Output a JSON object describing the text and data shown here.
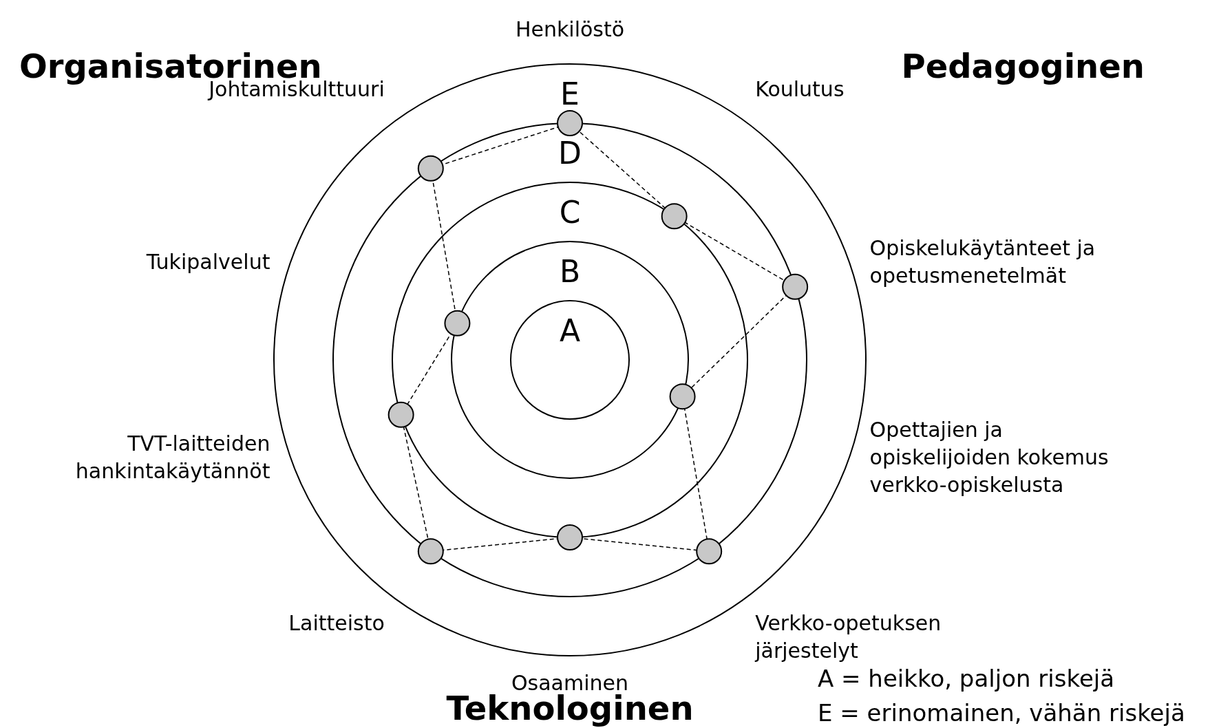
{
  "chart_data": {
    "type": "radar",
    "categories": [
      "Henkilöstö",
      "Koulutus",
      "Opiskelukäytänteet ja opetusmenetelmät",
      "Opettajien ja opiskelijoiden kokemus verkko-opiskelusta",
      "Verkko-opetuksen järjestelyt",
      "Osaaminen",
      "Laitteisto",
      "TVT-laitteiden hankintakäytännöt",
      "Tukipalvelut",
      "Johtamiskulttuuri"
    ],
    "series": [
      {
        "color": "#000000",
        "values": [
          4,
          3,
          4,
          2,
          4,
          3,
          4,
          3,
          2,
          4
        ]
      }
    ],
    "ylim": [
      0,
      5
    ],
    "yticks": [
      {
        "value": 1,
        "label": "A"
      },
      {
        "value": 2,
        "label": "B"
      },
      {
        "value": 3,
        "label": "C"
      },
      {
        "value": 4,
        "label": "D"
      },
      {
        "value": 5,
        "label": "E"
      }
    ],
    "grid": true,
    "marker": "circle",
    "line_style": "dashed",
    "annotations": [
      "Organisatorinen",
      "Pedagoginen",
      "Teknologinen",
      "A = heikko, paljon riskejä",
      "E = erinomainen, vähän riskejä"
    ]
  }
}
